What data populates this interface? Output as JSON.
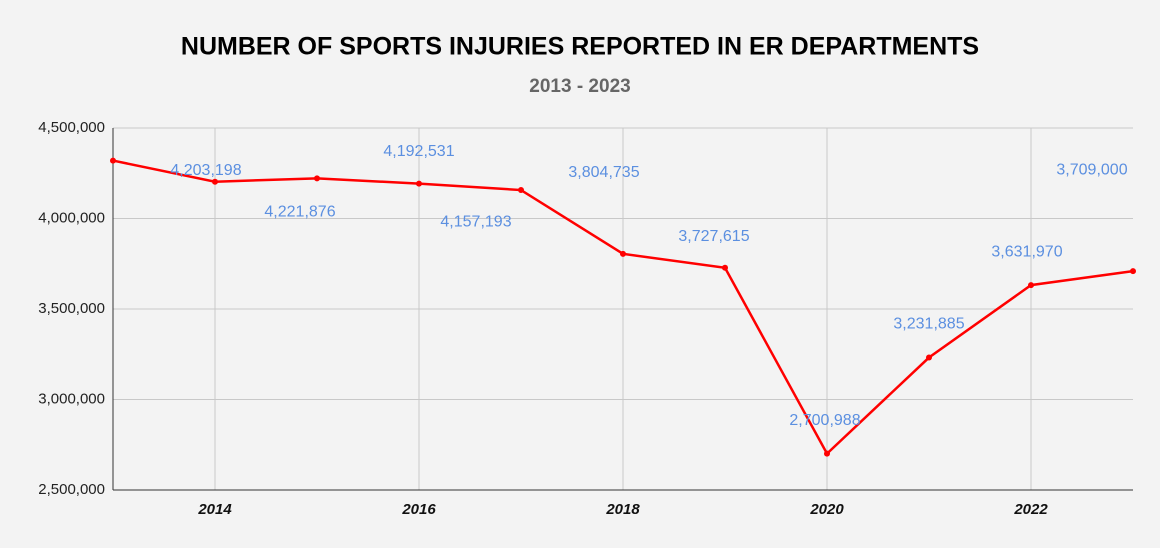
{
  "chart_data": {
    "type": "line",
    "title": "NUMBER OF SPORTS INJURIES REPORTED IN ER DEPARTMENTS",
    "subtitle": "2013 - 2023",
    "x": [
      2013,
      2014,
      2015,
      2016,
      2017,
      2018,
      2019,
      2020,
      2021,
      2022,
      2023
    ],
    "series": [
      {
        "name": "Sports injuries",
        "color": "#ff0000",
        "values": [
          4320000,
          4203198,
          4221876,
          4192531,
          4157193,
          3804735,
          3727615,
          2700988,
          3231885,
          3631970,
          3709000
        ],
        "value_labels": [
          null,
          "4,203,198",
          "4,221,876",
          "4,192,531",
          "4,157,193",
          "3,804,735",
          "3,727,615",
          "2,700,988",
          "3,231,885",
          "3,631,970",
          "3,709,000"
        ]
      }
    ],
    "label_color": "#5b8fe0",
    "xlim": [
      2013,
      2023
    ],
    "xticks": [
      2014,
      2016,
      2018,
      2020,
      2022
    ],
    "ylim": [
      2500000,
      4500000
    ],
    "yticks": [
      {
        "value": 2500000,
        "label": "2,500,000"
      },
      {
        "value": 3000000,
        "label": "3,000,000"
      },
      {
        "value": 3500000,
        "label": "3,500,000"
      },
      {
        "value": 4000000,
        "label": "4,000,000"
      },
      {
        "value": 4500000,
        "label": "4,500,000"
      }
    ],
    "grid": true
  }
}
